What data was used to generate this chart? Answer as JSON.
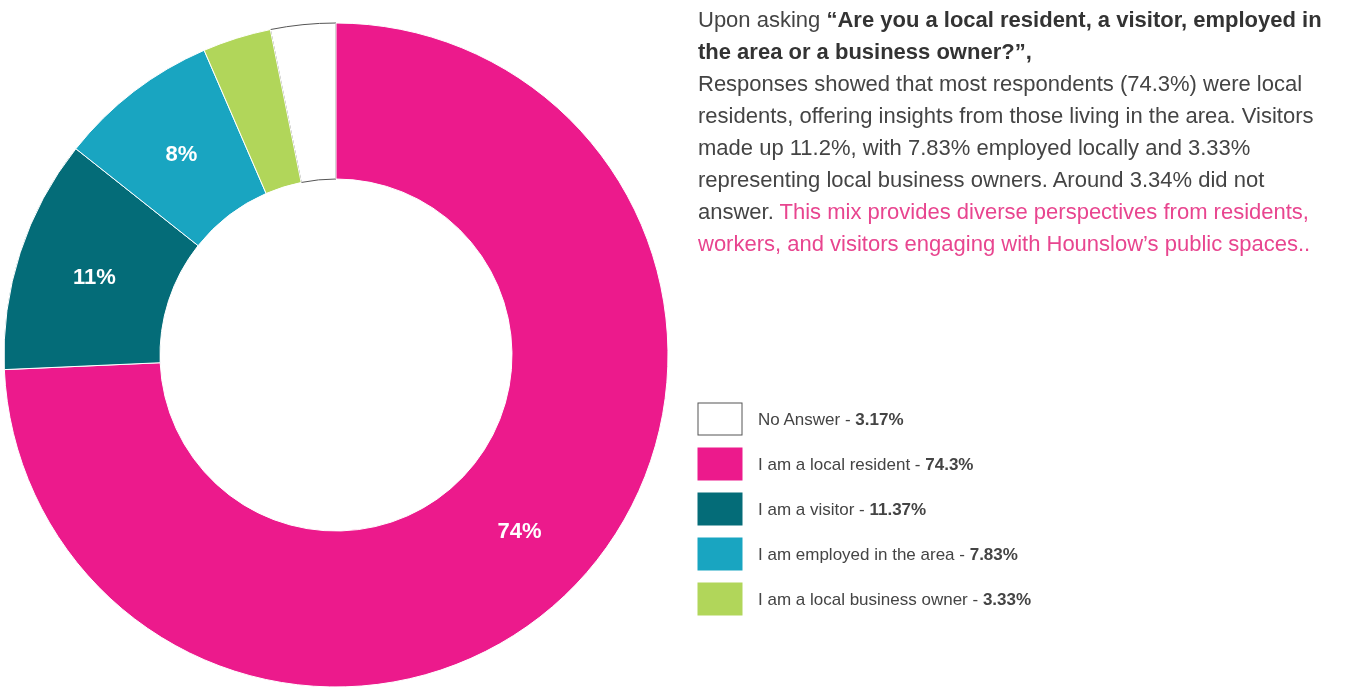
{
  "chart_data": {
    "type": "donut",
    "categories": [
      "No Answer - 3.17%",
      "I am a local resident - 74.3%",
      "I am a visitor - 11.37%",
      "I am employed in the area - 7.83%",
      "I am a local business owner - 3.33%"
    ],
    "values": [
      3.17,
      74.3,
      11.37,
      7.83,
      3.33
    ],
    "colors": [
      "#ffffff",
      "#ec1a8c",
      "#046c78",
      "#19a5c1",
      "#b1d65a"
    ],
    "value_labels": [
      null,
      "74%",
      "11%",
      "8%",
      null
    ],
    "legend": "right",
    "annotations": [
      "Upon asking",
      "“Are you a local resident, a visitor, employed in the area or a business owner?”,",
      "Responses showed that most respondents (74.3%) were local residents, offering insights from those living in the area. Visitors made up 11.2%, with 7.83% employed locally and 3.33% representing local business owners. Around 3.34% did not answer.",
      "This mix provides diverse perspectives from residents, workers, and visitors engaging with Hounslow’s public spaces.."
    ]
  }
}
